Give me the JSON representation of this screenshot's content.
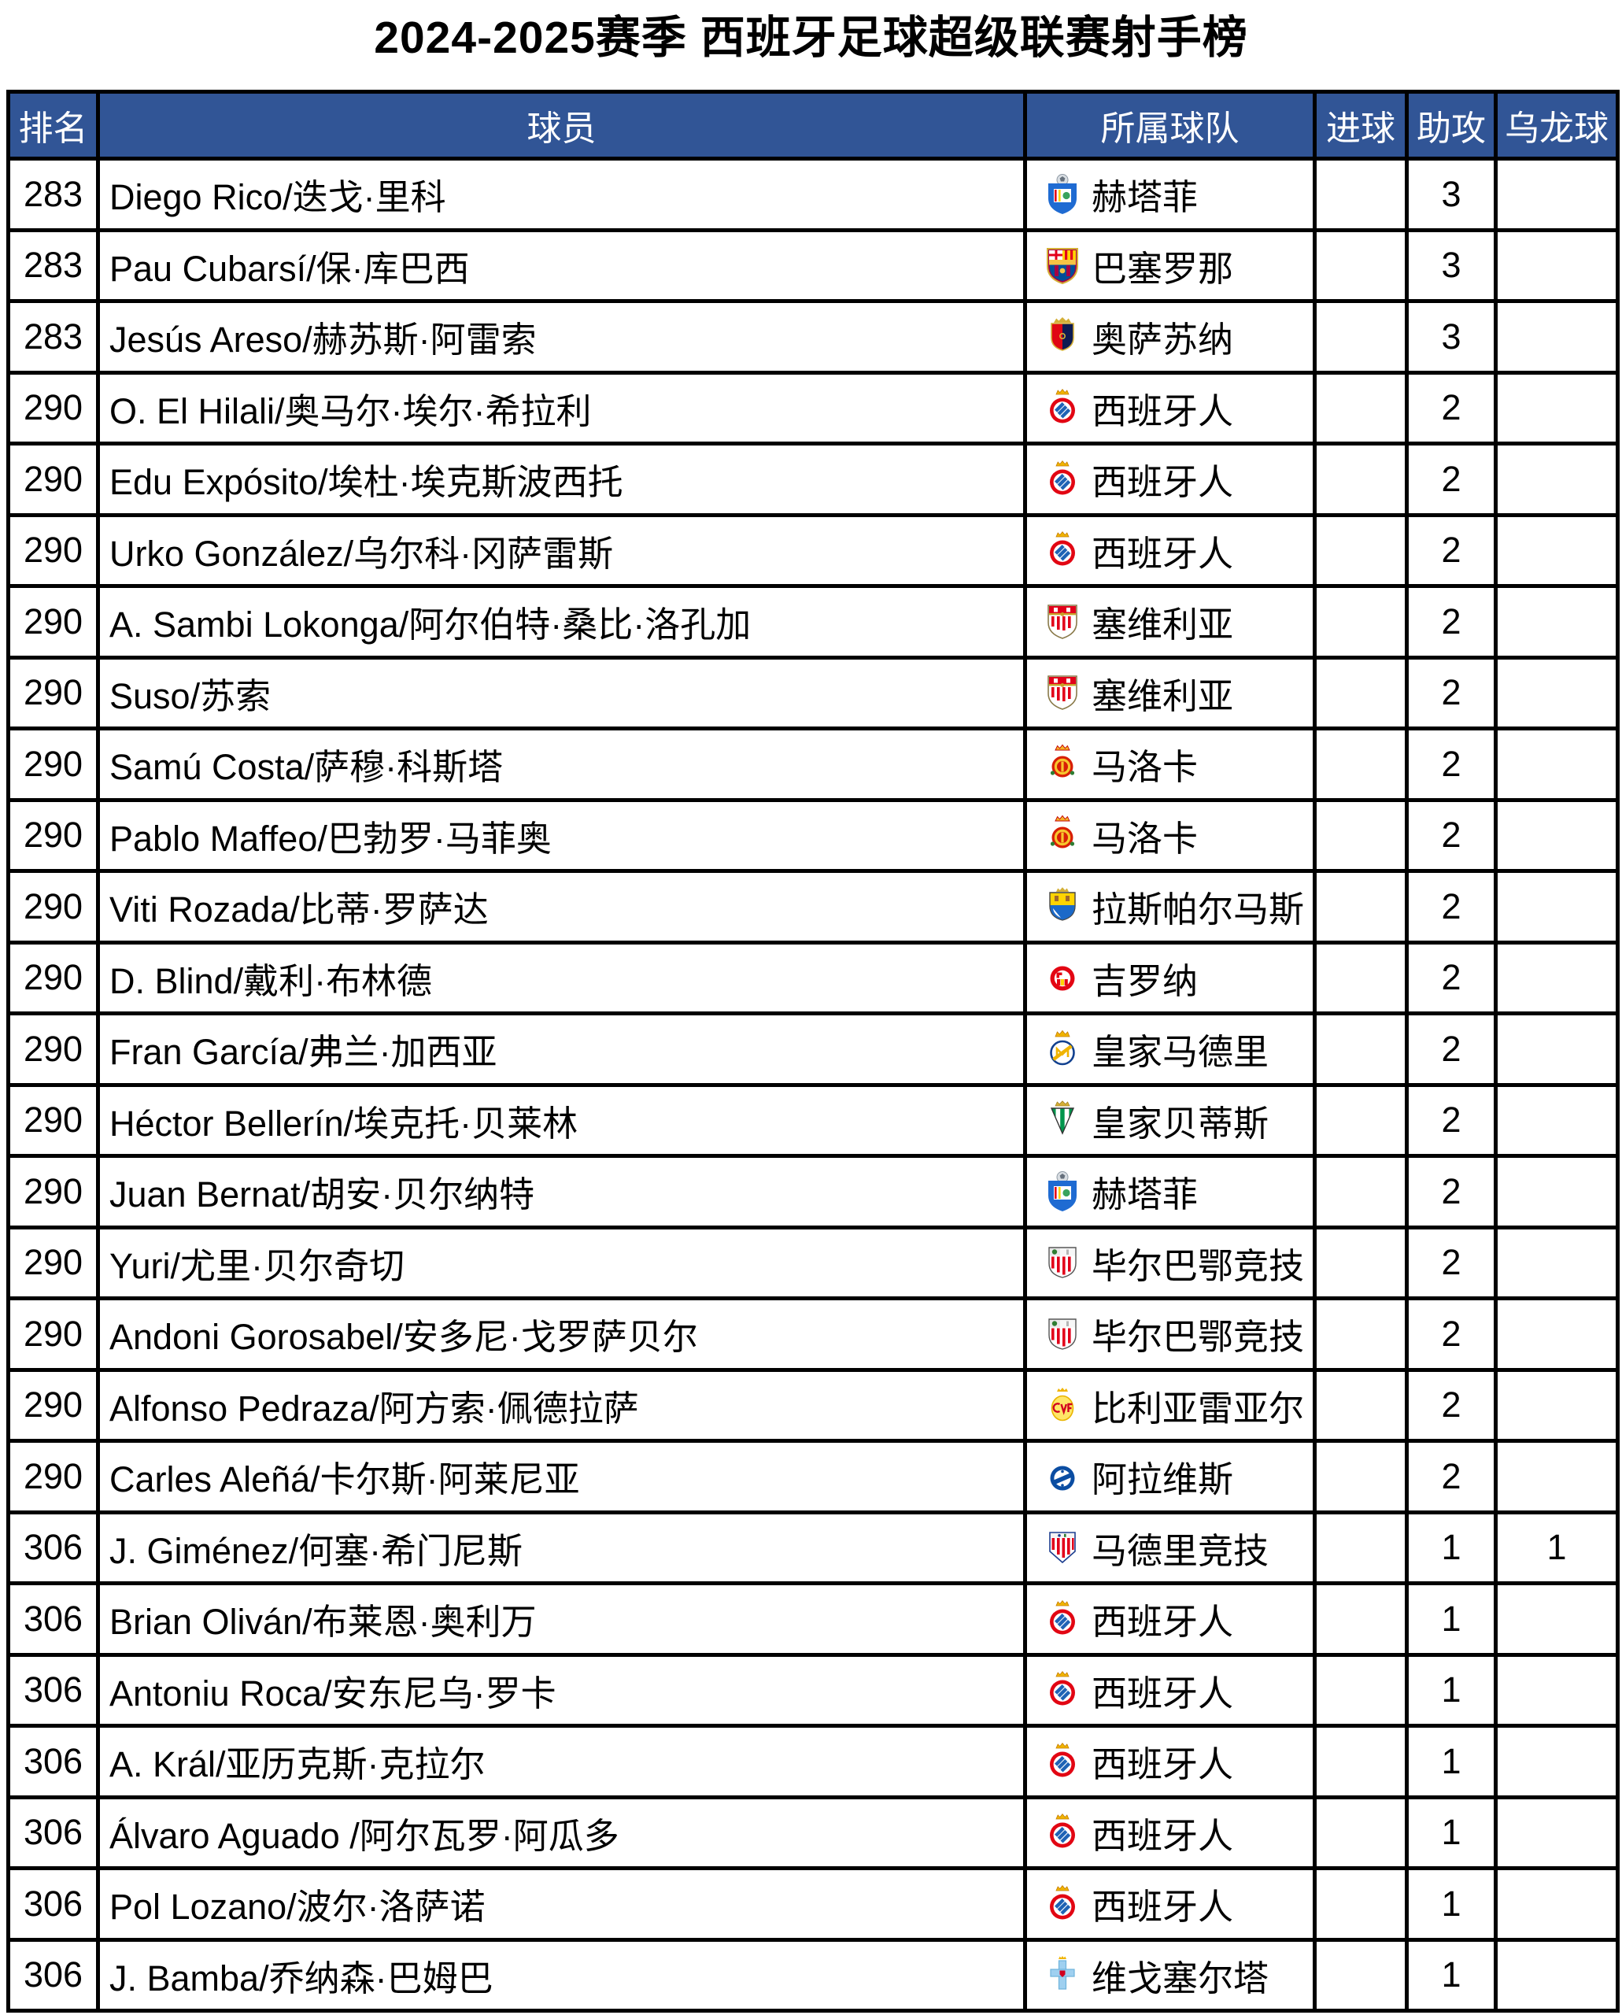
{
  "page_title": "2024-2025赛季 西班牙足球超级联赛射手榜",
  "colors": {
    "header_bg": "#315596",
    "header_text": "#ffffff",
    "border": "#000000",
    "row_bg": "#ffffff",
    "text": "#000000"
  },
  "table": {
    "columns": [
      {
        "key": "rank",
        "label": "排名"
      },
      {
        "key": "player",
        "label": "球员"
      },
      {
        "key": "team",
        "label": "所属球队"
      },
      {
        "key": "goals",
        "label": "进球"
      },
      {
        "key": "assists",
        "label": "助攻"
      },
      {
        "key": "own_goals",
        "label": "乌龙球"
      }
    ],
    "rows": [
      {
        "rank": "283",
        "player": "Diego Rico/迭戈·里科",
        "team": "赫塔菲",
        "team_logo": "getafe",
        "goals": "",
        "assists": "3",
        "own_goals": ""
      },
      {
        "rank": "283",
        "player": "Pau Cubarsí/保·库巴西",
        "team": "巴塞罗那",
        "team_logo": "barcelona",
        "goals": "",
        "assists": "3",
        "own_goals": ""
      },
      {
        "rank": "283",
        "player": "Jesús Areso/赫苏斯·阿雷索",
        "team": "奥萨苏纳",
        "team_logo": "osasuna",
        "goals": "",
        "assists": "3",
        "own_goals": ""
      },
      {
        "rank": "290",
        "player": "O. El Hilali/奥马尔·埃尔·希拉利",
        "team": "西班牙人",
        "team_logo": "espanyol",
        "goals": "",
        "assists": "2",
        "own_goals": ""
      },
      {
        "rank": "290",
        "player": "Edu Expósito/埃杜·埃克斯波西托",
        "team": "西班牙人",
        "team_logo": "espanyol",
        "goals": "",
        "assists": "2",
        "own_goals": ""
      },
      {
        "rank": "290",
        "player": "Urko González/乌尔科·冈萨雷斯",
        "team": "西班牙人",
        "team_logo": "espanyol",
        "goals": "",
        "assists": "2",
        "own_goals": ""
      },
      {
        "rank": "290",
        "player": "A. Sambi Lokonga/阿尔伯特·桑比·洛孔加",
        "team": "塞维利亚",
        "team_logo": "sevilla",
        "goals": "",
        "assists": "2",
        "own_goals": ""
      },
      {
        "rank": "290",
        "player": "Suso/苏索",
        "team": "塞维利亚",
        "team_logo": "sevilla",
        "goals": "",
        "assists": "2",
        "own_goals": ""
      },
      {
        "rank": "290",
        "player": "Samú Costa/萨穆·科斯塔",
        "team": "马洛卡",
        "team_logo": "mallorca",
        "goals": "",
        "assists": "2",
        "own_goals": ""
      },
      {
        "rank": "290",
        "player": "Pablo Maffeo/巴勃罗·马菲奥",
        "team": "马洛卡",
        "team_logo": "mallorca",
        "goals": "",
        "assists": "2",
        "own_goals": ""
      },
      {
        "rank": "290",
        "player": "Viti Rozada/比蒂·罗萨达",
        "team": "拉斯帕尔马斯",
        "team_logo": "las-palmas",
        "goals": "",
        "assists": "2",
        "own_goals": ""
      },
      {
        "rank": "290",
        "player": "D. Blind/戴利·布林德",
        "team": "吉罗纳",
        "team_logo": "girona",
        "goals": "",
        "assists": "2",
        "own_goals": ""
      },
      {
        "rank": "290",
        "player": "Fran García/弗兰·加西亚",
        "team": "皇家马德里",
        "team_logo": "real-madrid",
        "goals": "",
        "assists": "2",
        "own_goals": ""
      },
      {
        "rank": "290",
        "player": "Héctor Bellerín/埃克托·贝莱林",
        "team": "皇家贝蒂斯",
        "team_logo": "betis",
        "goals": "",
        "assists": "2",
        "own_goals": ""
      },
      {
        "rank": "290",
        "player": "Juan Bernat/胡安·贝尔纳特",
        "team": "赫塔菲",
        "team_logo": "getafe",
        "goals": "",
        "assists": "2",
        "own_goals": ""
      },
      {
        "rank": "290",
        "player": "Yuri/尤里·贝尔奇切",
        "team": "毕尔巴鄂竞技",
        "team_logo": "athletic",
        "goals": "",
        "assists": "2",
        "own_goals": ""
      },
      {
        "rank": "290",
        "player": "Andoni Gorosabel/安多尼·戈罗萨贝尔",
        "team": "毕尔巴鄂竞技",
        "team_logo": "athletic",
        "goals": "",
        "assists": "2",
        "own_goals": ""
      },
      {
        "rank": "290",
        "player": "Alfonso Pedraza/阿方索·佩德拉萨",
        "team": "比利亚雷亚尔",
        "team_logo": "villarreal",
        "goals": "",
        "assists": "2",
        "own_goals": ""
      },
      {
        "rank": "290",
        "player": "Carles Aleñá/卡尔斯·阿莱尼亚",
        "team": "阿拉维斯",
        "team_logo": "alaves",
        "goals": "",
        "assists": "2",
        "own_goals": ""
      },
      {
        "rank": "306",
        "player": "J. Giménez/何塞·希门尼斯",
        "team": "马德里竞技",
        "team_logo": "atletico",
        "goals": "",
        "assists": "1",
        "own_goals": "1"
      },
      {
        "rank": "306",
        "player": "Brian Oliván/布莱恩·奥利万",
        "team": "西班牙人",
        "team_logo": "espanyol",
        "goals": "",
        "assists": "1",
        "own_goals": ""
      },
      {
        "rank": "306",
        "player": "Antoniu Roca/安东尼乌·罗卡",
        "team": "西班牙人",
        "team_logo": "espanyol",
        "goals": "",
        "assists": "1",
        "own_goals": ""
      },
      {
        "rank": "306",
        "player": "A. Král/亚历克斯·克拉尔",
        "team": "西班牙人",
        "team_logo": "espanyol",
        "goals": "",
        "assists": "1",
        "own_goals": ""
      },
      {
        "rank": "306",
        "player": "Álvaro Aguado /阿尔瓦罗·阿瓜多",
        "team": "西班牙人",
        "team_logo": "espanyol",
        "goals": "",
        "assists": "1",
        "own_goals": ""
      },
      {
        "rank": "306",
        "player": "Pol Lozano/波尔·洛萨诺",
        "team": "西班牙人",
        "team_logo": "espanyol",
        "goals": "",
        "assists": "1",
        "own_goals": ""
      },
      {
        "rank": "306",
        "player": "J. Bamba/乔纳森·巴姆巴",
        "team": "维戈塞尔塔",
        "team_logo": "celta",
        "goals": "",
        "assists": "1",
        "own_goals": ""
      }
    ]
  }
}
